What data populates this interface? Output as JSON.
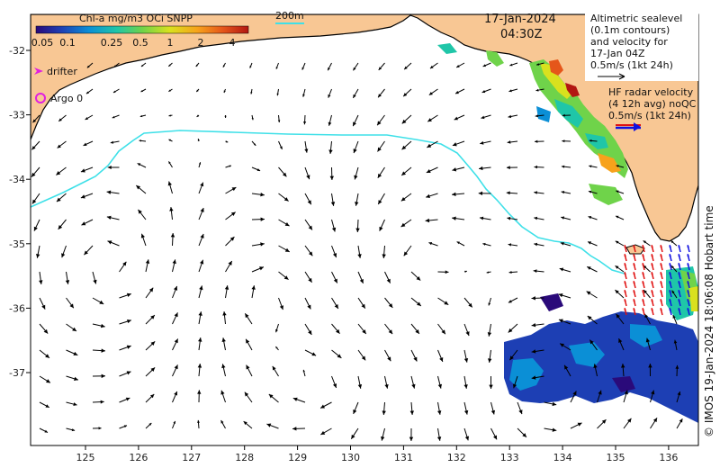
{
  "map": {
    "title_date": "17-Jan-2024",
    "title_time": "04:30Z",
    "isobath_label": "200m",
    "colorbar": {
      "title": "Chl-a mg/m3 OCi SNPP",
      "ticks": [
        "0.05",
        "0.1",
        "0.25",
        "0.5",
        "1",
        "2",
        "4"
      ],
      "colors": [
        "#2a0a7a",
        "#1d3fb4",
        "#0b8fd6",
        "#1fc6a8",
        "#6fd34a",
        "#d9e11e",
        "#f7a21b",
        "#e5561a",
        "#b21712"
      ]
    },
    "legend": {
      "drifter_label": "drifter",
      "argo_label": "Argo 0"
    },
    "altimetry_note": {
      "line1": "Altimetric sealevel",
      "line2": "(0.1m contours)",
      "line3": "and velocity for",
      "line4": "17-Jan 04Z",
      "line5": "0.5m/s (1kt 24h)"
    },
    "hf_radar_note": {
      "line1": "HF radar velocity",
      "line2": "(4 12h avg) noQC",
      "line3": "0.5m/s (1kt 24h)"
    },
    "credit": "© IMOS 19-Jan-2024 18:06:08 Hobart time",
    "x_axis_ticks": [
      "125",
      "126",
      "127",
      "128",
      "129",
      "130",
      "131",
      "132",
      "133",
      "134",
      "135",
      "136"
    ],
    "y_axis_ticks": [
      "-32",
      "-33",
      "-34",
      "-35",
      "-36",
      "-37"
    ],
    "colors": {
      "land": "#f8c794",
      "ocean": "#ffffff",
      "isobath": "#3ee0e8",
      "drifter": "#e020e0",
      "hf_radar_red": "#e01010",
      "hf_radar_blue": "#1010e0"
    }
  }
}
